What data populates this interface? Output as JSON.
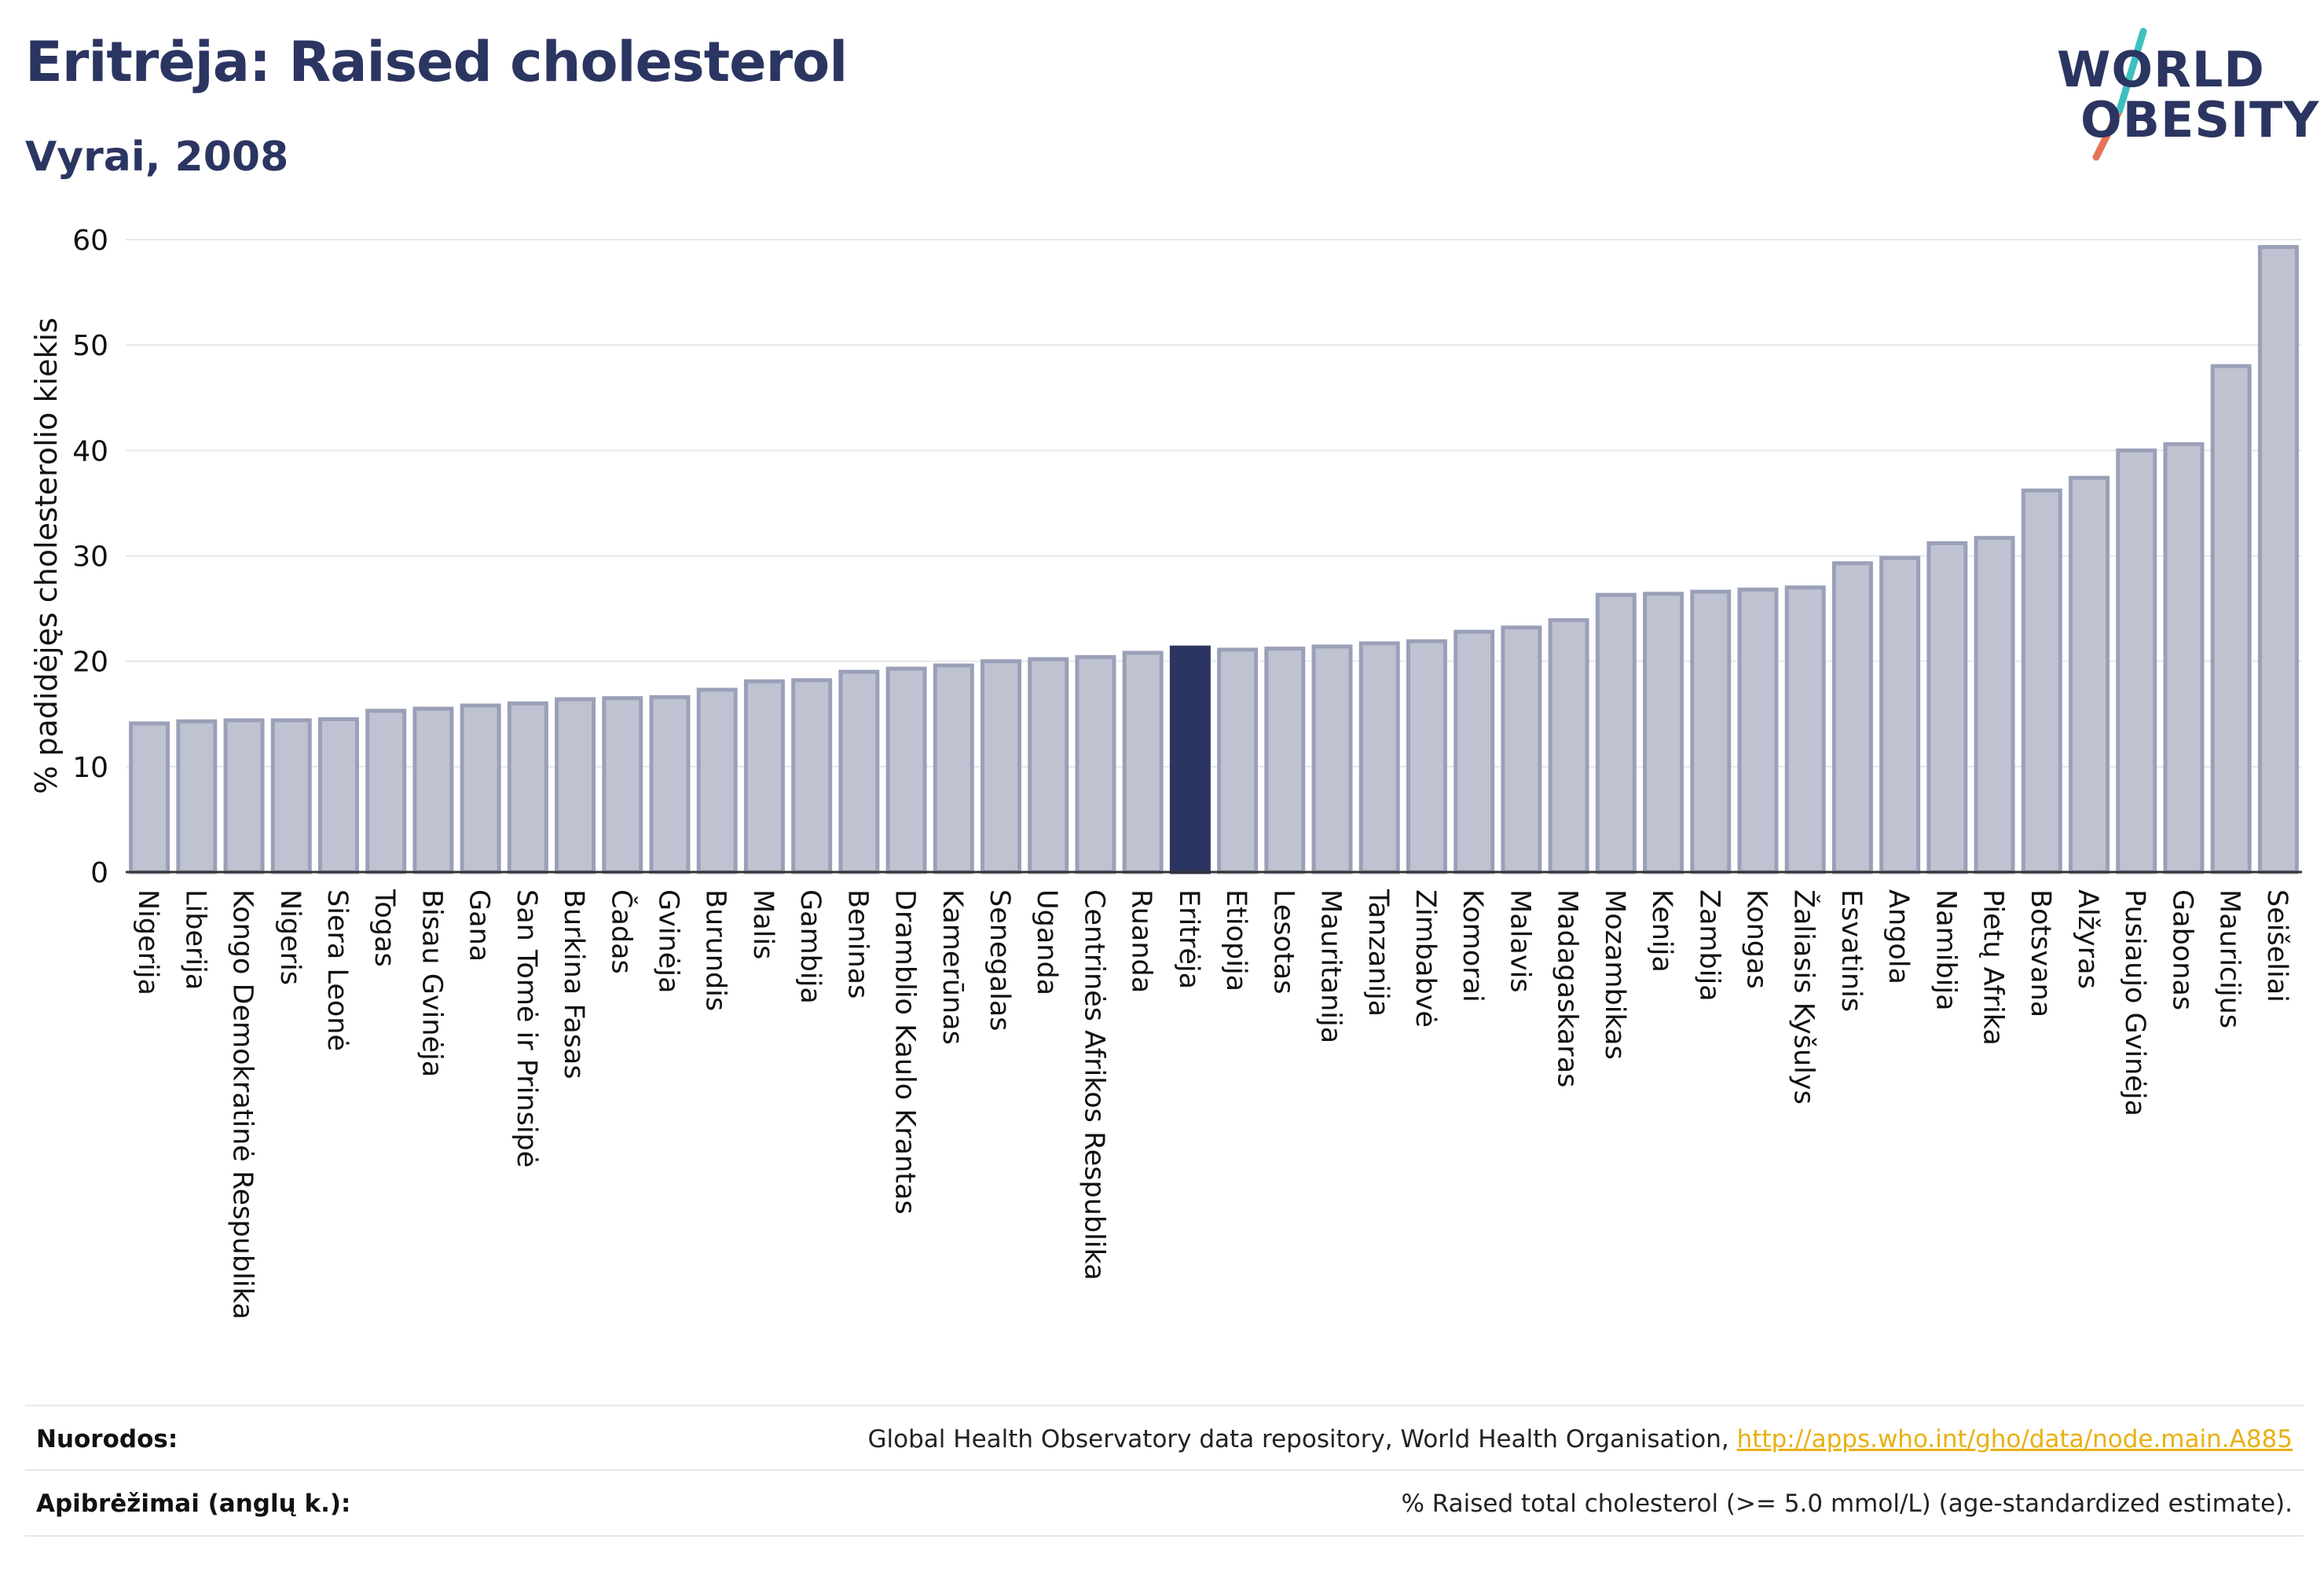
{
  "header": {
    "title": "Eritrėja: Raised cholesterol",
    "subtitle": "Vyrai, 2008"
  },
  "logo": {
    "line1": "WORLD",
    "line2": "OBESITY",
    "colors": {
      "text": "#2b3561",
      "slash_top": "#3fbfbf",
      "slash_bottom": "#e8735a"
    }
  },
  "chart_data": {
    "type": "bar",
    "ylabel": "% padidėjęs cholesterolio kiekis",
    "ylim": [
      0,
      60
    ],
    "yticks": [
      0,
      10,
      20,
      30,
      40,
      50,
      60
    ],
    "grid": true,
    "highlight": "Eritrėja",
    "colors": {
      "bar": "#bfc3d1",
      "bar_stroke": "#9aa0b8",
      "highlight": "#2b3561"
    },
    "categories": [
      "Nigerija",
      "Liberija",
      "Kongo Demokratinė Respublika",
      "Nigeris",
      "Siera Leonė",
      "Togas",
      "Bisau Gvinėja",
      "Gana",
      "San Tomė ir Prinsipė",
      "Burkina Fasas",
      "Čadas",
      "Gvinėja",
      "Burundis",
      "Malis",
      "Gambija",
      "Beninas",
      "Dramblio Kaulo Krantas",
      "Kamerūnas",
      "Senegalas",
      "Uganda",
      "Centrinės Afrikos Respublika",
      "Ruanda",
      "Eritrėja",
      "Etiopija",
      "Lesotas",
      "Mauritanija",
      "Tanzanija",
      "Zimbabvė",
      "Komorai",
      "Malavis",
      "Madagaskaras",
      "Mozambikas",
      "Kenija",
      "Zambija",
      "Kongas",
      "Žaliasis Kyšulys",
      "Esvatinis",
      "Angola",
      "Namibija",
      "Pietų Afrika",
      "Botsvana",
      "Alžyras",
      "Pusiaujo Gvinėja",
      "Gabonas",
      "Mauricijus",
      "Seišeliai"
    ],
    "values": [
      14.1,
      14.3,
      14.4,
      14.4,
      14.5,
      15.3,
      15.5,
      15.8,
      16.0,
      16.4,
      16.5,
      16.6,
      17.3,
      18.1,
      18.2,
      19.0,
      19.3,
      19.6,
      20.0,
      20.2,
      20.4,
      20.8,
      21.3,
      21.1,
      21.2,
      21.4,
      21.7,
      21.9,
      22.8,
      23.2,
      23.9,
      26.3,
      26.4,
      26.6,
      26.8,
      27.0,
      29.3,
      29.8,
      31.2,
      31.7,
      36.2,
      37.4,
      40.0,
      40.6,
      48.0,
      59.3
    ]
  },
  "footer": {
    "sources_label": "Nuorodos:",
    "sources_text": "Global Health Observatory data repository, World Health Organisation, ",
    "sources_link": "http://apps.who.int/gho/data/node.main.A885",
    "definitions_label": "Apibrėžimai (anglų k.):",
    "definitions_text": "% Raised total cholesterol (>= 5.0 mmol/L) (age-standardized estimate)."
  }
}
